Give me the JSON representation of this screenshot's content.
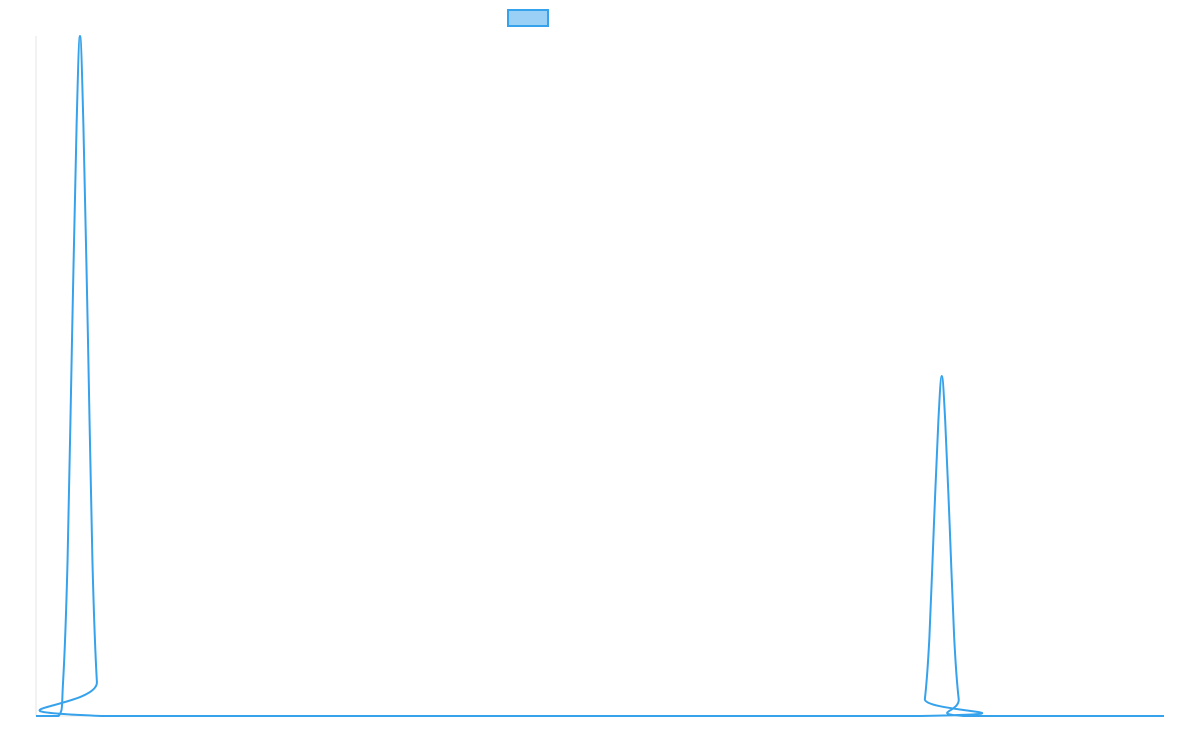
{
  "chart_data": {
    "type": "line",
    "title": "",
    "xlabel": "",
    "ylabel": "",
    "grid": false,
    "legend": {
      "position": "top-center",
      "entries": [
        {
          "name": "",
          "fill": "#9ad0f5",
          "stroke": "#36a2eb"
        }
      ]
    },
    "x_range": [
      0,
      1
    ],
    "y_range": [
      0,
      1
    ],
    "series": [
      {
        "name": "",
        "color": "#36a2eb",
        "points": [
          [
            0.0,
            0.0
          ],
          [
            0.02,
            0.0
          ],
          [
            0.024,
            0.05
          ],
          [
            0.028,
            0.23
          ],
          [
            0.032,
            0.56
          ],
          [
            0.036,
            0.87
          ],
          [
            0.039,
            1.0
          ],
          [
            0.042,
            0.87
          ],
          [
            0.046,
            0.56
          ],
          [
            0.05,
            0.23
          ],
          [
            0.054,
            0.05
          ],
          [
            0.058,
            0.0
          ],
          [
            0.784,
            0.0
          ],
          [
            0.788,
            0.025
          ],
          [
            0.792,
            0.115
          ],
          [
            0.796,
            0.28
          ],
          [
            0.8,
            0.435
          ],
          [
            0.803,
            0.5
          ],
          [
            0.806,
            0.435
          ],
          [
            0.81,
            0.28
          ],
          [
            0.814,
            0.115
          ],
          [
            0.818,
            0.025
          ],
          [
            0.822,
            0.0
          ],
          [
            1.0,
            0.0
          ]
        ]
      }
    ]
  }
}
